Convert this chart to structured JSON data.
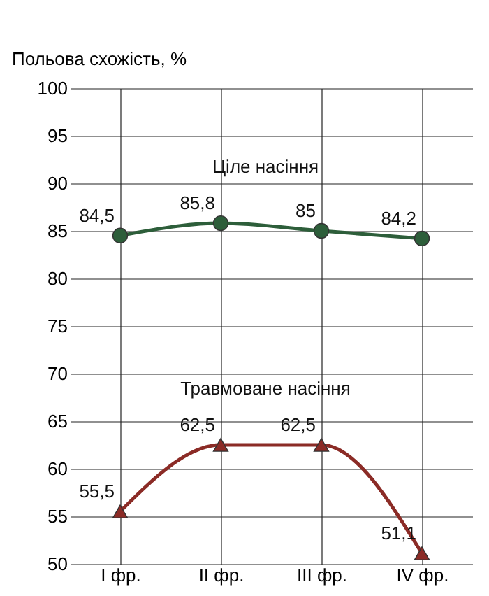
{
  "chart_data": {
    "type": "line",
    "ylabel": "Польова схожість, %",
    "categories": [
      "I фр.",
      "II фр.",
      "III фр.",
      "IV фр."
    ],
    "series": [
      {
        "name": "Ціле насіння",
        "color": "#2d5e3a",
        "marker": "circle",
        "values": [
          84.5,
          85.8,
          85,
          84.2
        ],
        "value_labels": [
          "84,5",
          "85,8",
          "85",
          "84,2"
        ]
      },
      {
        "name": "Травмоване насіння",
        "color": "#8b2b26",
        "marker": "triangle",
        "values": [
          55.5,
          62.5,
          62.5,
          51.1
        ],
        "value_labels": [
          "55,5",
          "62,5",
          "62,5",
          "51,1"
        ]
      }
    ],
    "ylim": [
      50,
      100
    ],
    "yticks": [
      50,
      55,
      60,
      65,
      70,
      75,
      80,
      85,
      90,
      95,
      100
    ],
    "grid": true,
    "legend": false,
    "line_style": "solid"
  }
}
